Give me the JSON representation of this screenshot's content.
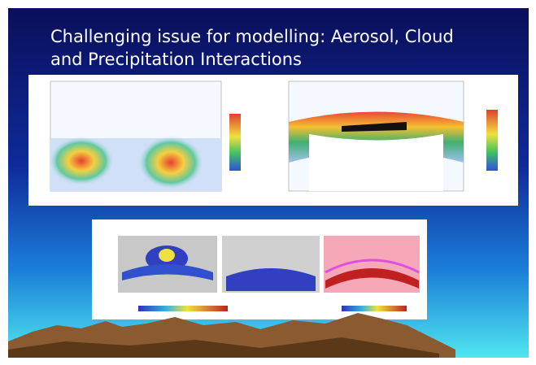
{
  "title": {
    "lines": [
      "Challenging issue for modelling: Aerosol, Cloud",
      "and Precipitation Interactions"
    ]
  }
}
